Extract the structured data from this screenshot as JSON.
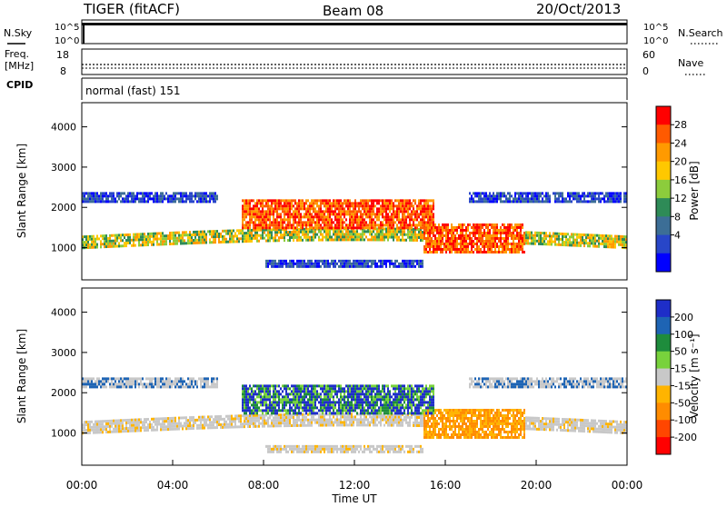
{
  "header": {
    "title": "TIGER (fitACF)",
    "beam": "Beam 08",
    "date": "20/Oct/2013"
  },
  "top_panels": {
    "nsky_label": "N.Sky",
    "nsearch_label": "N.Search",
    "noise_ticks": [
      "10^5",
      "10^0"
    ],
    "freq_label_1": "Freq.",
    "freq_label_2": "[MHz]",
    "freq_ticks": [
      "18",
      "8"
    ],
    "nave_label": "Nave",
    "nave_ticks": [
      "60",
      "0"
    ],
    "cpid_label": "CPID",
    "cpid_text": "normal (fast) 151"
  },
  "chart_data": [
    {
      "type": "heatmap",
      "name": "power",
      "ylabel": "Slant Range [km]",
      "ylim": [
        200,
        4600
      ],
      "yticks": [
        1000,
        2000,
        3000,
        4000
      ],
      "colorbar_label": "Power [dB]",
      "colorbar_ticks": [
        "28",
        "24",
        "20",
        "16",
        "12",
        "8",
        "4"
      ],
      "colorbar_colors": [
        "#ff0000",
        "#ff5a00",
        "#ff9a00",
        "#ffc800",
        "#8ccc3c",
        "#2e8b57",
        "#3c6e96",
        "#2846c8",
        "#0000ff"
      ]
    },
    {
      "type": "heatmap",
      "name": "velocity",
      "ylabel": "Slant Range [km]",
      "xlabel": "Time UT",
      "ylim": [
        200,
        4600
      ],
      "yticks": [
        1000,
        2000,
        3000,
        4000
      ],
      "colorbar_label": "Velocity [m s⁻¹]",
      "colorbar_ticks": [
        "200",
        "100",
        "50",
        "15",
        "-15",
        "-50",
        "-100",
        "-200"
      ],
      "colorbar_colors": [
        "#1e2ec8",
        "#1e64b4",
        "#1e8c3c",
        "#78d23c",
        "#c8c8c8",
        "#ffb400",
        "#ff8c00",
        "#ff4600",
        "#ff0000"
      ],
      "xticks": [
        "00:00",
        "04:00",
        "08:00",
        "12:00",
        "16:00",
        "20:00",
        "00:00"
      ]
    }
  ]
}
